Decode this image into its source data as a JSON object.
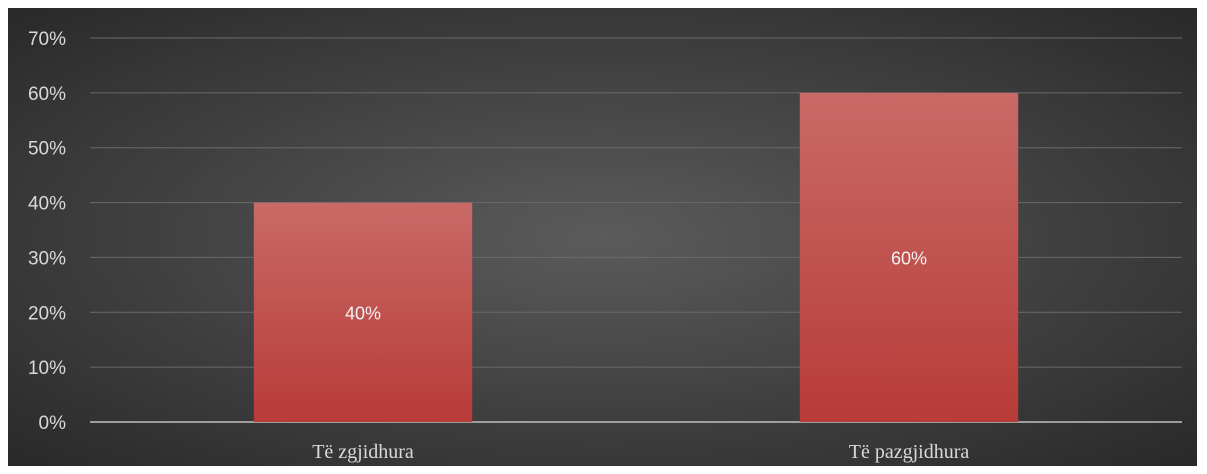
{
  "chart_data": {
    "type": "bar",
    "categories": [
      "Të zgjidhura",
      "Të pazgjidhura"
    ],
    "values": [
      40,
      60
    ],
    "data_labels": [
      "40%",
      "60%"
    ],
    "yticks": [
      "0%",
      "10%",
      "20%",
      "30%",
      "40%",
      "50%",
      "60%",
      "70%"
    ],
    "ylim": [
      0,
      70
    ],
    "grid": true,
    "title": "",
    "xlabel": "",
    "ylabel": "",
    "colors": {
      "bar_top": "#c86a67",
      "bar_bottom": "#b83b38",
      "background_center": "#5b5b5b",
      "background_edge": "#262626",
      "gridline": "#6a6a6a",
      "axis": "#bfbfbf",
      "text": "#d9d9d9"
    }
  }
}
